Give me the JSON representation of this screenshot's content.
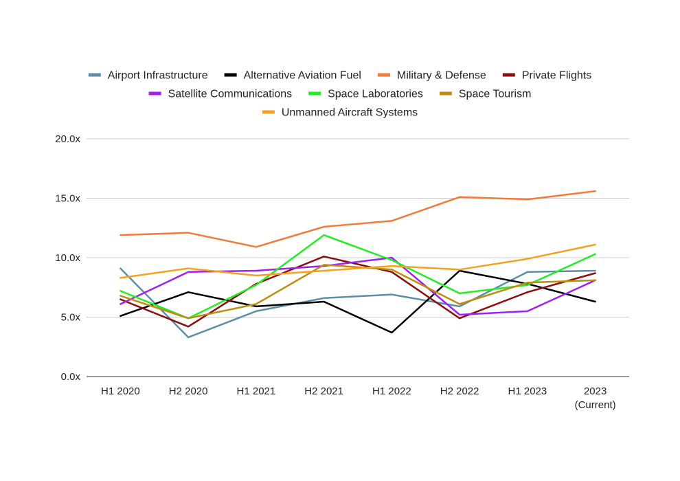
{
  "chart_data": {
    "type": "line",
    "title": "",
    "xlabel": "",
    "ylabel": "",
    "categories": [
      "H1 2020",
      "H2 2020",
      "H1 2021",
      "H2 2021",
      "H1 2022",
      "H2 2022",
      "H1 2023",
      "2023 (Current)"
    ],
    "category_lines": [
      [
        "H1 2020"
      ],
      [
        "H2 2020"
      ],
      [
        "H1 2021"
      ],
      [
        "H2 2021"
      ],
      [
        "H1 2022"
      ],
      [
        "H2 2022"
      ],
      [
        "H1 2023"
      ],
      [
        "2023",
        "(Current)"
      ]
    ],
    "ylim": [
      0,
      20
    ],
    "yticks": [
      0,
      5,
      10,
      15,
      20
    ],
    "ytick_labels": [
      "0.0x",
      "5.0x",
      "10.0x",
      "15.0x",
      "20.0x"
    ],
    "grid": true,
    "legend_position": "top",
    "series": [
      {
        "name": "Airport Infrastructure",
        "color": "#5b8fa8",
        "values": [
          9.1,
          3.3,
          5.5,
          6.6,
          6.9,
          5.9,
          8.8,
          8.9
        ]
      },
      {
        "name": "Alternative Aviation Fuel",
        "color": "#000000",
        "values": [
          5.1,
          7.1,
          5.9,
          6.3,
          3.7,
          8.9,
          7.8,
          6.3
        ]
      },
      {
        "name": "Military & Defense",
        "color": "#f47a3a",
        "values": [
          11.9,
          12.1,
          10.9,
          12.6,
          13.1,
          15.1,
          14.9,
          15.6
        ]
      },
      {
        "name": "Private Flights",
        "color": "#8b0d0d",
        "values": [
          6.5,
          4.2,
          7.8,
          10.1,
          8.8,
          4.9,
          7.1,
          8.7
        ]
      },
      {
        "name": "Satellite Communications",
        "color": "#a020f0",
        "values": [
          6.1,
          8.8,
          8.9,
          9.3,
          10.0,
          5.2,
          5.5,
          8.1
        ]
      },
      {
        "name": "Space Laboratories",
        "color": "#22ee22",
        "values": [
          7.2,
          4.9,
          7.7,
          11.9,
          9.8,
          7.0,
          7.7,
          10.3
        ]
      },
      {
        "name": "Space Tourism",
        "color": "#bf8c10",
        "values": [
          6.8,
          4.9,
          6.1,
          9.4,
          9.0,
          6.1,
          7.9,
          8.1
        ]
      },
      {
        "name": "Unmanned Aircraft Systems",
        "color": "#f5a020",
        "values": [
          8.3,
          9.1,
          8.5,
          8.9,
          9.3,
          9.0,
          9.9,
          11.1
        ]
      }
    ]
  }
}
